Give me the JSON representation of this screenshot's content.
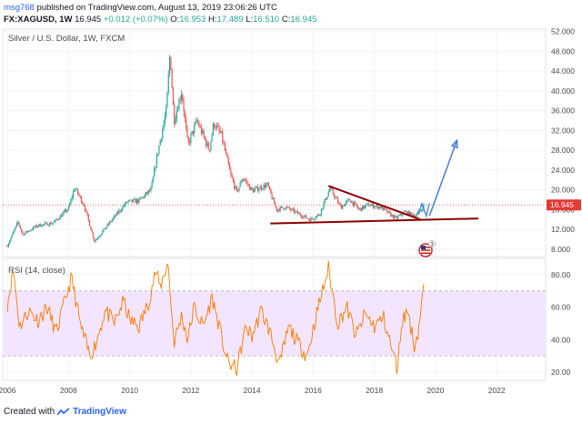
{
  "header": {
    "user": "msg768",
    "published": "published on TradingView.com, August 13, 2019 23:06:26 UTC",
    "symbol": "FX:XAGUSD, 1W",
    "price": "16.945",
    "change": "+0.012 (+0.07%)",
    "o_label": "O:",
    "o_value": "16.953",
    "h_label": "H:",
    "h_value": "17.489",
    "l_label": "L:",
    "l_value": "16.510",
    "c_label": "C:",
    "c_value": "16.945"
  },
  "footer": {
    "created_with": "Created with",
    "brand": "TradingView"
  },
  "colors": {
    "up": "#26a69a",
    "down": "#ef5350",
    "trendline": "#8b0000",
    "arrow": "#4a7fd4",
    "rsi": "#f57c00",
    "rsi_band": "#f3e5ff",
    "price_line": "#e53935"
  },
  "chart_data": [
    {
      "type": "candlestick",
      "title": "Silver / U.S. Dollar, 1W, FXCM",
      "last_price_label": "16.945",
      "x_ticks": [
        "2006",
        "2008",
        "2010",
        "2012",
        "2014",
        "2016",
        "2018",
        "2020",
        "2022"
      ],
      "xlim": [
        2005.85,
        2023.6
      ],
      "y_ticks": [
        "8.000",
        "12.000",
        "16.000",
        "20.000",
        "24.000",
        "28.000",
        "32.000",
        "36.000",
        "40.000",
        "44.000",
        "48.000",
        "52.000"
      ],
      "ylim": [
        6.5,
        52.5
      ],
      "trend_path": [
        [
          2006.0,
          8.7
        ],
        [
          2006.35,
          13.5
        ],
        [
          2006.5,
          11.0
        ],
        [
          2007.0,
          12.8
        ],
        [
          2007.5,
          13.3
        ],
        [
          2008.0,
          16.2
        ],
        [
          2008.2,
          20.5
        ],
        [
          2008.5,
          17.0
        ],
        [
          2008.85,
          9.6
        ],
        [
          2009.3,
          13.0
        ],
        [
          2009.9,
          17.5
        ],
        [
          2010.3,
          17.8
        ],
        [
          2010.7,
          20.0
        ],
        [
          2010.9,
          27.0
        ],
        [
          2011.2,
          36.0
        ],
        [
          2011.32,
          48.0
        ],
        [
          2011.45,
          34.0
        ],
        [
          2011.7,
          40.0
        ],
        [
          2011.9,
          29.0
        ],
        [
          2012.2,
          34.0
        ],
        [
          2012.6,
          28.0
        ],
        [
          2012.75,
          33.5
        ],
        [
          2013.0,
          31.0
        ],
        [
          2013.3,
          23.0
        ],
        [
          2013.5,
          19.5
        ],
        [
          2013.7,
          22.5
        ],
        [
          2014.0,
          19.8
        ],
        [
          2014.5,
          21.0
        ],
        [
          2014.8,
          16.0
        ],
        [
          2015.1,
          16.5
        ],
        [
          2015.5,
          15.2
        ],
        [
          2015.9,
          14.0
        ],
        [
          2016.2,
          15.0
        ],
        [
          2016.55,
          20.3
        ],
        [
          2016.9,
          16.5
        ],
        [
          2017.2,
          18.0
        ],
        [
          2017.5,
          16.0
        ],
        [
          2017.8,
          17.0
        ],
        [
          2018.2,
          16.5
        ],
        [
          2018.7,
          14.2
        ],
        [
          2019.0,
          15.5
        ],
        [
          2019.3,
          14.8
        ],
        [
          2019.55,
          16.0
        ],
        [
          2019.62,
          16.95
        ]
      ],
      "annotations": {
        "resistance_line": [
          [
            2016.5,
            20.8
          ],
          [
            2019.5,
            14.0
          ]
        ],
        "support_line": [
          [
            2014.6,
            13.2
          ],
          [
            2021.4,
            14.2
          ]
        ],
        "small_arrow": [
          [
            2019.45,
            15.0
          ],
          [
            2019.55,
            17.2
          ],
          [
            2019.7,
            14.7
          ],
          [
            2019.8,
            17.3
          ]
        ],
        "big_arrow": [
          [
            2019.8,
            14.7
          ],
          [
            2020.7,
            30.0
          ]
        ],
        "reference_price": 16.945
      }
    },
    {
      "type": "line",
      "title": "RSI (14, close)",
      "y_ticks": [
        "20.00",
        "40.00",
        "60.00",
        "80.00"
      ],
      "ylim": [
        15,
        90
      ],
      "band": [
        30,
        70
      ],
      "path": [
        [
          2006.0,
          62
        ],
        [
          2006.2,
          83
        ],
        [
          2006.4,
          48
        ],
        [
          2006.7,
          58
        ],
        [
          2007.0,
          52
        ],
        [
          2007.3,
          60
        ],
        [
          2007.6,
          44
        ],
        [
          2007.9,
          65
        ],
        [
          2008.1,
          78
        ],
        [
          2008.4,
          48
        ],
        [
          2008.7,
          30
        ],
        [
          2008.9,
          38
        ],
        [
          2009.2,
          58
        ],
        [
          2009.5,
          50
        ],
        [
          2009.8,
          64
        ],
        [
          2010.0,
          52
        ],
        [
          2010.3,
          48
        ],
        [
          2010.6,
          62
        ],
        [
          2010.85,
          82
        ],
        [
          2011.0,
          72
        ],
        [
          2011.25,
          88
        ],
        [
          2011.45,
          38
        ],
        [
          2011.7,
          55
        ],
        [
          2011.9,
          40
        ],
        [
          2012.1,
          60
        ],
        [
          2012.4,
          48
        ],
        [
          2012.7,
          66
        ],
        [
          2012.9,
          50
        ],
        [
          2013.2,
          26
        ],
        [
          2013.5,
          22
        ],
        [
          2013.8,
          48
        ],
        [
          2014.0,
          42
        ],
        [
          2014.3,
          58
        ],
        [
          2014.6,
          44
        ],
        [
          2014.9,
          24
        ],
        [
          2015.2,
          48
        ],
        [
          2015.5,
          38
        ],
        [
          2015.8,
          30
        ],
        [
          2016.1,
          55
        ],
        [
          2016.5,
          84
        ],
        [
          2016.8,
          50
        ],
        [
          2017.1,
          60
        ],
        [
          2017.4,
          42
        ],
        [
          2017.7,
          56
        ],
        [
          2018.0,
          48
        ],
        [
          2018.3,
          54
        ],
        [
          2018.6,
          32
        ],
        [
          2018.75,
          22
        ],
        [
          2018.9,
          52
        ],
        [
          2019.1,
          58
        ],
        [
          2019.3,
          36
        ],
        [
          2019.45,
          46
        ],
        [
          2019.55,
          65
        ],
        [
          2019.62,
          71
        ]
      ]
    }
  ]
}
